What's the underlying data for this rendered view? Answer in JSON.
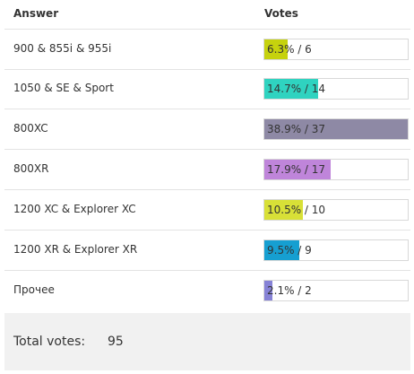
{
  "header": {
    "answer_label": "Answer",
    "votes_label": "Votes"
  },
  "rows": [
    {
      "answer": "900 & 855i & 955i",
      "percent": 6.3,
      "votes": 6,
      "text": "6.3% / 6",
      "color": "#c6d20e"
    },
    {
      "answer": "1050 & SE & Sport",
      "percent": 14.7,
      "votes": 14,
      "text": "14.7% / 14",
      "color": "#2fd3c0"
    },
    {
      "answer": "800XC",
      "percent": 38.9,
      "votes": 37,
      "text": "38.9% / 37",
      "color": "#8e89a5"
    },
    {
      "answer": "800XR",
      "percent": 17.9,
      "votes": 17,
      "text": "17.9% / 17",
      "color": "#bf85da"
    },
    {
      "answer": "1200 XC & Explorer XC",
      "percent": 10.5,
      "votes": 10,
      "text": "10.5% / 10",
      "color": "#d8e037"
    },
    {
      "answer": "1200 XR & Explorer XR",
      "percent": 9.5,
      "votes": 9,
      "text": "9.5% / 9",
      "color": "#169fd1"
    },
    {
      "answer": "Прочее",
      "percent": 2.1,
      "votes": 2,
      "text": "2.1% / 2",
      "color": "#8682d6"
    }
  ],
  "footer": {
    "total_label": "Total votes:",
    "total_value": "95"
  },
  "scale_max_percent": 38.9
}
